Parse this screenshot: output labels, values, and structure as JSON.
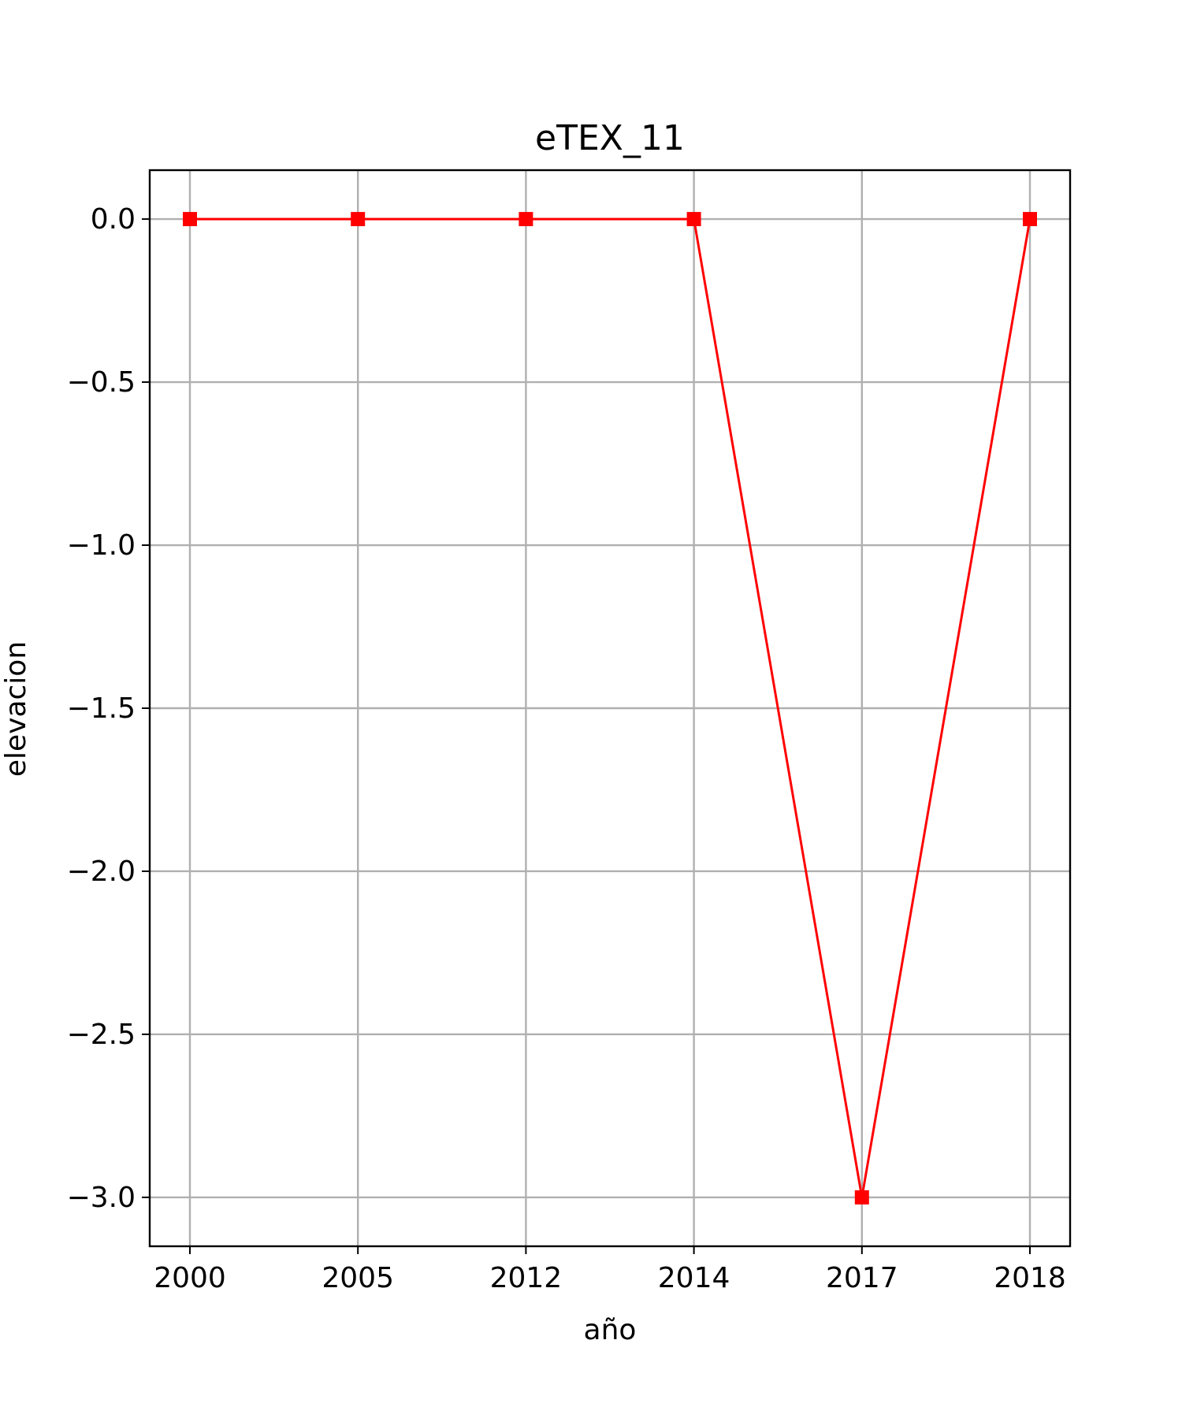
{
  "chart_data": {
    "type": "line",
    "title": "eTEX_11",
    "xlabel": "año",
    "ylabel": "elevacion",
    "categories": [
      "2000",
      "2005",
      "2012",
      "2014",
      "2017",
      "2018"
    ],
    "series": [
      {
        "values": [
          0.0,
          0.0,
          0.0,
          0.0,
          -3.0,
          0.0
        ],
        "color": "#ff0000",
        "marker": "square"
      }
    ],
    "ylim": [
      -3.15,
      0.15
    ],
    "yticks": [
      0.0,
      -0.5,
      -1.0,
      -1.5,
      -2.0,
      -2.5,
      -3.0
    ],
    "ytick_labels": [
      "0.0",
      "−0.5",
      "−1.0",
      "−1.5",
      "−2.0",
      "−2.5",
      "−3.0"
    ],
    "grid": true,
    "colors": {
      "series": "#ff0000",
      "grid": "#b0b0b0",
      "axes": "#000000"
    }
  }
}
